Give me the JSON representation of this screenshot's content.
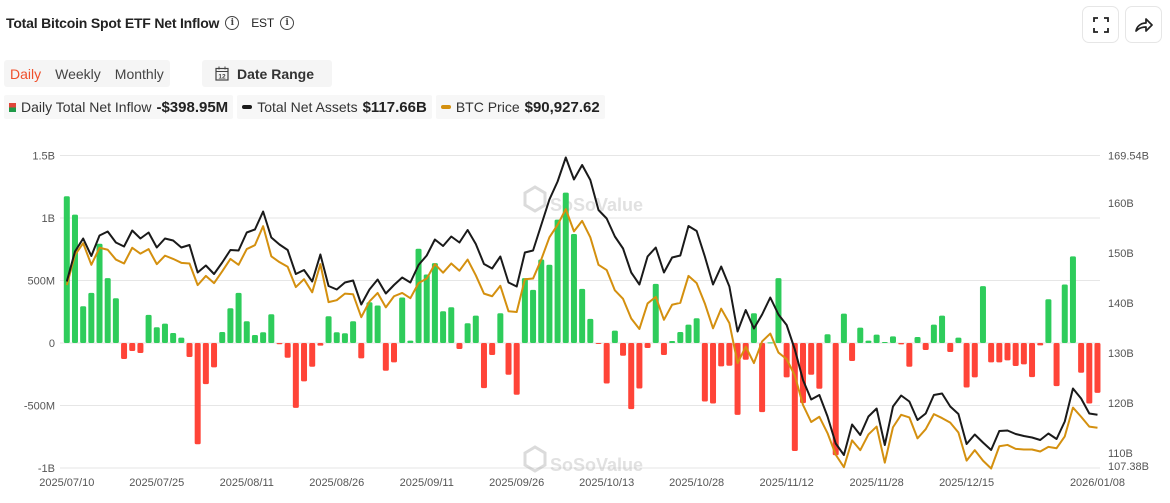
{
  "header": {
    "title": "Total Bitcoin Spot ETF Net Inflow",
    "timezone": "EST",
    "info_icon": "info-circle-icon",
    "fullscreen_icon": "fullscreen-icon",
    "share_icon": "share-arrow-icon"
  },
  "tabs": [
    {
      "label": "Daily",
      "active": true
    },
    {
      "label": "Weekly",
      "active": false
    },
    {
      "label": "Monthly",
      "active": false
    }
  ],
  "date_range": {
    "label": "Date Range",
    "icon": "calendar-icon",
    "icon_text": "12"
  },
  "legend": [
    {
      "label": "Daily Total Net Inflow",
      "value": "-$398.95M"
    },
    {
      "label": "Total Net Assets",
      "value": "$117.66B"
    },
    {
      "label": "BTC Price",
      "value": "$90,927.62"
    }
  ],
  "watermark": "SoSoValue",
  "colors": {
    "inflow_positive": "#2ecc5b",
    "inflow_negative": "#ff4438",
    "net_assets": "#1a1a1a",
    "btc_price": "#d4900f",
    "active_tab": "#f0502c"
  },
  "chart_data": {
    "type": "bar+line",
    "grid": true,
    "left_axis": {
      "ticks": [
        "1.5B",
        "1B",
        "500M",
        "0",
        "-500M",
        "-1B"
      ],
      "tick_values": [
        1500,
        1000,
        500,
        0,
        -500,
        -1000
      ],
      "range": [
        -1000,
        1500
      ],
      "unit": "USD millions"
    },
    "right_axis": {
      "ticks": [
        "169.54B",
        "160B",
        "150B",
        "140B",
        "130B",
        "120B",
        "110B",
        "107.38B"
      ],
      "tick_values": [
        169.54,
        160,
        150,
        140,
        130,
        120,
        110,
        107.38
      ],
      "range": [
        107.38,
        169.54
      ],
      "unit": "USD billions"
    },
    "x_ticks": [
      "2025/07/10",
      "2025/07/25",
      "2025/08/11",
      "2025/08/26",
      "2025/09/11",
      "2025/09/26",
      "2025/10/13",
      "2025/10/28",
      "2025/11/12",
      "2025/11/28",
      "2025/12/15",
      "2026/01/08"
    ],
    "dates": [
      "2025/07/10",
      "2025/07/11",
      "2025/07/14",
      "2025/07/15",
      "2025/07/16",
      "2025/07/17",
      "2025/07/18",
      "2025/07/21",
      "2025/07/22",
      "2025/07/23",
      "2025/07/24",
      "2025/07/25",
      "2025/07/28",
      "2025/07/29",
      "2025/07/30",
      "2025/07/31",
      "2025/08/01",
      "2025/08/04",
      "2025/08/05",
      "2025/08/06",
      "2025/08/07",
      "2025/08/08",
      "2025/08/11",
      "2025/08/12",
      "2025/08/13",
      "2025/08/14",
      "2025/08/15",
      "2025/08/18",
      "2025/08/19",
      "2025/08/20",
      "2025/08/21",
      "2025/08/22",
      "2025/08/25",
      "2025/08/26",
      "2025/08/27",
      "2025/08/28",
      "2025/08/29",
      "2025/09/02",
      "2025/09/03",
      "2025/09/04",
      "2025/09/05",
      "2025/09/08",
      "2025/09/09",
      "2025/09/10",
      "2025/09/11",
      "2025/09/12",
      "2025/09/15",
      "2025/09/16",
      "2025/09/17",
      "2025/09/18",
      "2025/09/19",
      "2025/09/22",
      "2025/09/23",
      "2025/09/24",
      "2025/09/25",
      "2025/09/26",
      "2025/09/29",
      "2025/09/30",
      "2025/10/01",
      "2025/10/02",
      "2025/10/03",
      "2025/10/06",
      "2025/10/07",
      "2025/10/08",
      "2025/10/09",
      "2025/10/10",
      "2025/10/13",
      "2025/10/14",
      "2025/10/15",
      "2025/10/16",
      "2025/10/17",
      "2025/10/20",
      "2025/10/21",
      "2025/10/22",
      "2025/10/23",
      "2025/10/24",
      "2025/10/27",
      "2025/10/28",
      "2025/10/29",
      "2025/10/30",
      "2025/10/31",
      "2025/11/03",
      "2025/11/04",
      "2025/11/05",
      "2025/11/06",
      "2025/11/07",
      "2025/11/10",
      "2025/11/11",
      "2025/11/12",
      "2025/11/13",
      "2025/11/14",
      "2025/11/17",
      "2025/11/18",
      "2025/11/19",
      "2025/11/20",
      "2025/11/21",
      "2025/11/24",
      "2025/11/25",
      "2025/11/26",
      "2025/11/28",
      "2025/12/01",
      "2025/12/02",
      "2025/12/03",
      "2025/12/04",
      "2025/12/05",
      "2025/12/08",
      "2025/12/09",
      "2025/12/10",
      "2025/12/11",
      "2025/12/12",
      "2025/12/15",
      "2025/12/16",
      "2025/12/17",
      "2025/12/18",
      "2025/12/19",
      "2025/12/22",
      "2025/12/23",
      "2025/12/24",
      "2025/12/26",
      "2025/12/29",
      "2025/12/30",
      "2025/12/31",
      "2026/01/02",
      "2026/01/05",
      "2026/01/06",
      "2026/01/07",
      "2026/01/08"
    ],
    "series": [
      {
        "name": "Daily Total Net Inflow",
        "type": "bar",
        "axis": "left",
        "unit": "USD millions",
        "values": [
          1174,
          1027,
          294,
          401,
          794,
          519,
          358,
          -128,
          -64,
          -80,
          225,
          126,
          155,
          80,
          43,
          -112,
          -810,
          -329,
          -195,
          88,
          278,
          401,
          174,
          64,
          86,
          230,
          -10,
          -118,
          -519,
          -307,
          -190,
          -21,
          214,
          86,
          78,
          174,
          -123,
          326,
          300,
          -222,
          -155,
          364,
          19,
          754,
          548,
          639,
          254,
          286,
          -48,
          158,
          219,
          -361,
          -96,
          238,
          -254,
          -414,
          519,
          425,
          668,
          626,
          987,
          1203,
          872,
          433,
          193,
          -3,
          -324,
          99,
          -102,
          -529,
          -364,
          -40,
          473,
          -96,
          16,
          88,
          147,
          198,
          -468,
          -484,
          -187,
          -182,
          -575,
          -134,
          238,
          -553,
          5,
          519,
          -275,
          -864,
          -481,
          -254,
          -366,
          70,
          -898,
          235,
          -144,
          123,
          19,
          67,
          8,
          53,
          -11,
          -190,
          48,
          -56,
          147,
          219,
          -72,
          43,
          -356,
          -275,
          455,
          -155,
          -155,
          -139,
          -184,
          -171,
          -273,
          -19,
          350,
          -345,
          468,
          693,
          -238,
          -484,
          -398.95
        ]
      },
      {
        "name": "Total Net Assets",
        "type": "line",
        "axis": "right",
        "unit": "USD billions",
        "values": [
          144.3,
          150.3,
          152.9,
          149.4,
          153.5,
          154.3,
          152.1,
          151.3,
          154.5,
          152.9,
          154.1,
          151.1,
          152.9,
          152.5,
          151.1,
          151.6,
          146.1,
          147.5,
          145.8,
          148.1,
          150.6,
          150.5,
          154.1,
          154.7,
          158.3,
          153.1,
          151.7,
          150.6,
          145.8,
          146.6,
          144.3,
          149.7,
          143.4,
          142.7,
          144.1,
          144.5,
          139.7,
          142.7,
          144.7,
          141.9,
          143.6,
          145.1,
          144.1,
          147.6,
          149.5,
          152.7,
          151.4,
          153.3,
          152.1,
          154.6,
          151.8,
          147.8,
          146.9,
          149.3,
          144.1,
          143.3,
          150.1,
          150.5,
          155.6,
          160.7,
          164.3,
          169.1,
          164.7,
          167.6,
          164.6,
          158.6,
          156.9,
          153.3,
          150.9,
          146.1,
          143.7,
          149.3,
          151.1,
          146.1,
          149.1,
          149.5,
          155.4,
          154.4,
          149.3,
          143.7,
          147.3,
          143.3,
          134.3,
          138.6,
          134.9,
          137.7,
          141.1,
          137.7,
          135.6,
          130.7,
          124.6,
          120.7,
          121.6,
          117.3,
          111.9,
          109.6,
          115.7,
          113.6,
          117.3,
          118.9,
          111.6,
          119.3,
          121.5,
          120.3,
          116.6,
          117.9,
          121.6,
          121.9,
          119.3,
          117.8,
          111.8,
          113.7,
          112.1,
          110.6,
          114.4,
          114.5,
          113.8,
          113.4,
          113.1,
          112.6,
          113.9,
          112.8,
          116.3,
          122.9,
          120.9,
          117.9,
          117.66
        ]
      },
      {
        "name": "BTC Price",
        "type": "line",
        "axis": "hidden",
        "unit": "USD",
        "values": [
          112700,
          117300,
          119100,
          115800,
          118400,
          118100,
          116600,
          116000,
          118400,
          117500,
          118200,
          115900,
          117200,
          116700,
          116100,
          116000,
          112700,
          114100,
          113000,
          114800,
          116700,
          115800,
          118200,
          118800,
          121700,
          117100,
          116200,
          115500,
          112400,
          113600,
          111600,
          115900,
          110100,
          110400,
          111400,
          111300,
          107800,
          110200,
          111500,
          109300,
          111000,
          111500,
          110700,
          113000,
          113700,
          115900,
          114600,
          116000,
          114900,
          116600,
          114200,
          111400,
          111000,
          112600,
          108700,
          108600,
          113600,
          113700,
          116600,
          120000,
          121900,
          124300,
          120900,
          122500,
          120000,
          115800,
          115000,
          111900,
          110600,
          107600,
          106000,
          109900,
          110900,
          107400,
          109700,
          110000,
          114100,
          113000,
          109900,
          106100,
          109100,
          106900,
          100800,
          103300,
          100800,
          104100,
          105300,
          102400,
          101400,
          98900,
          94400,
          91800,
          92600,
          90100,
          86800,
          84900,
          89000,
          87500,
          89900,
          91100,
          85600,
          91000,
          92900,
          92500,
          89300,
          90700,
          93000,
          92400,
          91700,
          90200,
          85900,
          87500,
          85900,
          84700,
          88100,
          88300,
          87700,
          87600,
          87600,
          87300,
          88000,
          87800,
          89600,
          94000,
          92600,
          91100,
          90927.62
        ]
      }
    ]
  }
}
